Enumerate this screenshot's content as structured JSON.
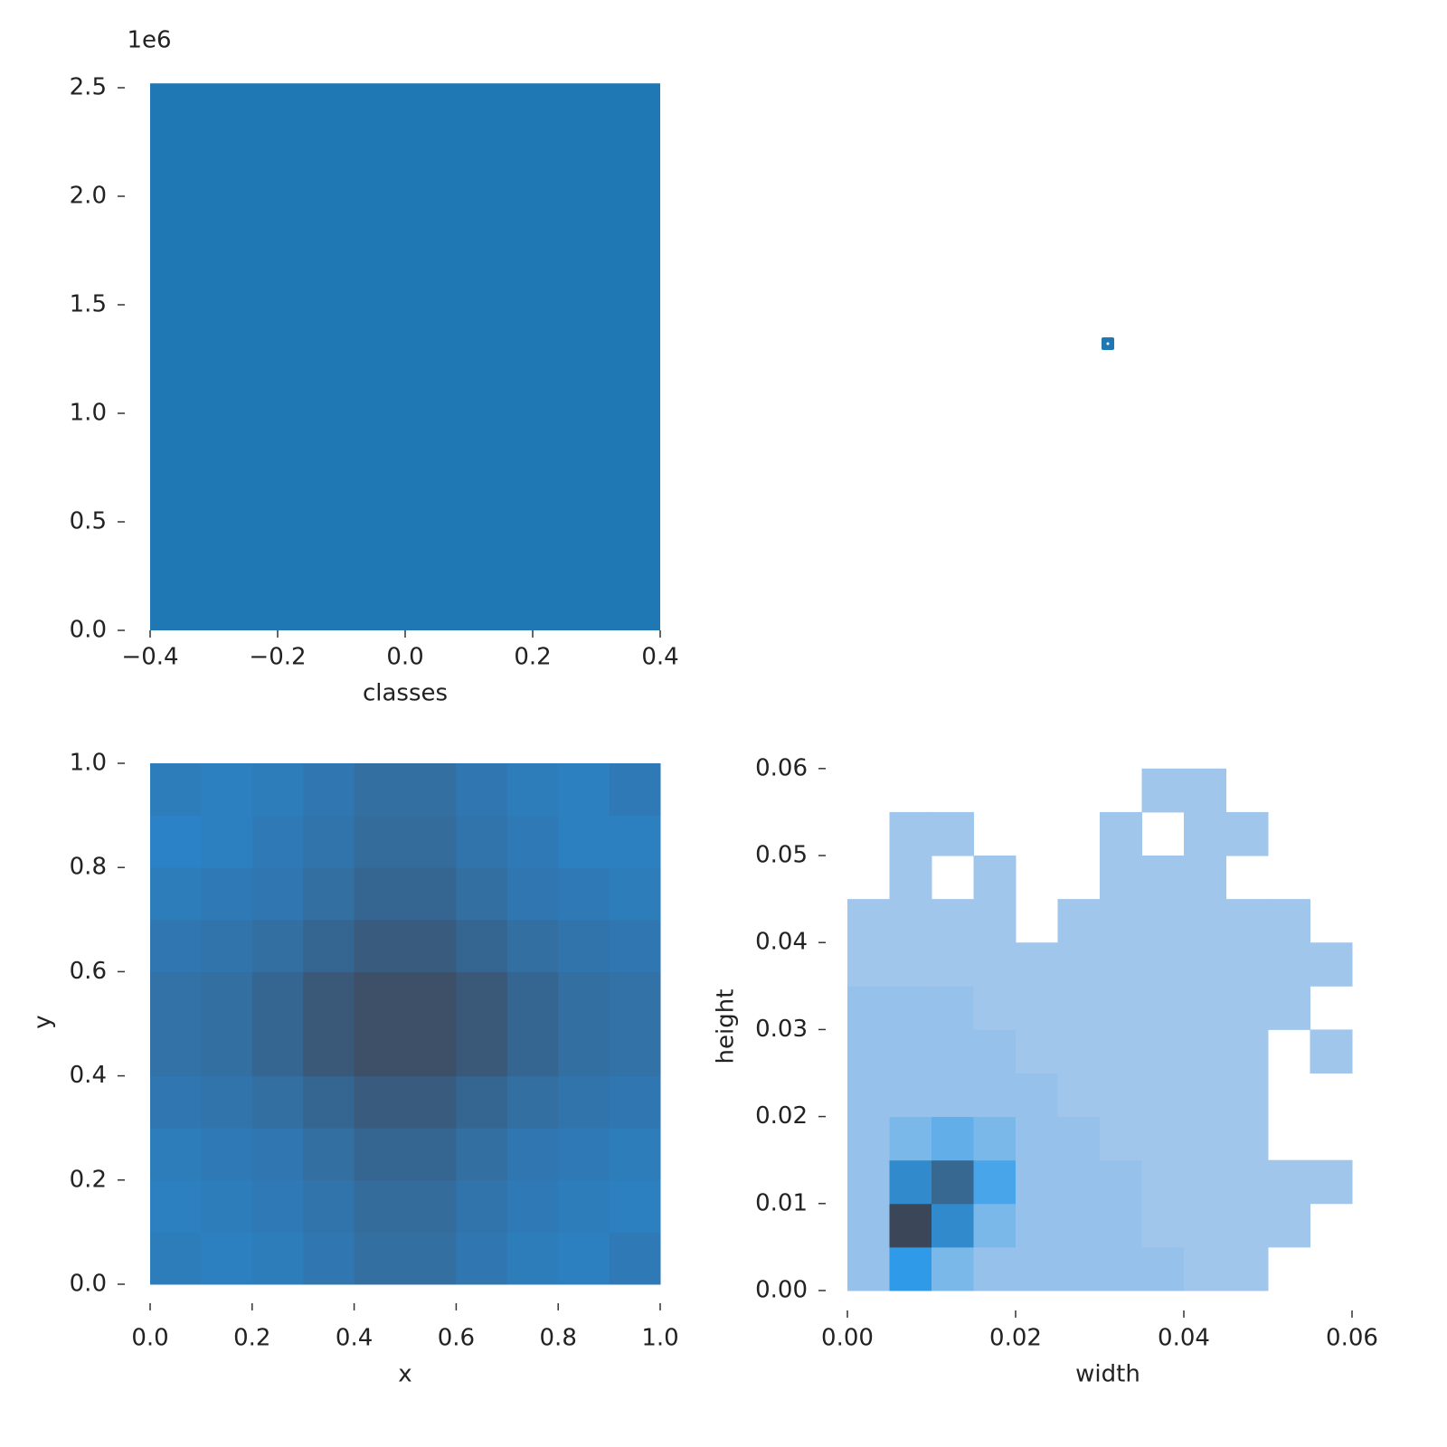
{
  "chart_data": [
    {
      "type": "histogram",
      "xlabel": "classes",
      "offset_label": "1e6",
      "bins": [
        -0.4,
        0.4
      ],
      "values": [
        2.52
      ],
      "color": "#1f77b4",
      "xlim": [
        -0.4,
        0.4
      ],
      "ylim": [
        0,
        2.52
      ],
      "xticks": [
        {
          "value": -0.4,
          "label": "−0.4"
        },
        {
          "value": -0.2,
          "label": "−0.2"
        },
        {
          "value": 0,
          "label": "0.0"
        },
        0.2,
        0.4
      ],
      "yticks": [
        {
          "value": 0,
          "label": "0.0"
        },
        0.5,
        {
          "value": 1,
          "label": "1.0"
        },
        1.5,
        {
          "value": 2,
          "label": "2.0"
        },
        2.5
      ]
    },
    {
      "type": "hist2d",
      "xlabel": "x",
      "ylabel": "y",
      "colors": [
        "#2a88d0",
        "#3d5068"
      ],
      "xbins": [
        0,
        0.1,
        0.2,
        0.3,
        0.4,
        0.5,
        0.6,
        0.7,
        0.8,
        0.9,
        1
      ],
      "ybins": [
        0,
        0.1,
        0.2,
        0.3,
        0.4,
        0.5,
        0.6,
        0.7,
        0.8,
        0.9,
        1
      ],
      "counts": [
        [
          0.2,
          0.15,
          0.2,
          0.3,
          0.45,
          0.45,
          0.3,
          0.2,
          0.15,
          0.25
        ],
        [
          0.15,
          0.2,
          0.25,
          0.35,
          0.5,
          0.5,
          0.35,
          0.25,
          0.2,
          0.15
        ],
        [
          0.2,
          0.25,
          0.3,
          0.45,
          0.6,
          0.6,
          0.45,
          0.3,
          0.25,
          0.2
        ],
        [
          0.3,
          0.35,
          0.45,
          0.6,
          0.8,
          0.8,
          0.6,
          0.45,
          0.35,
          0.3
        ],
        [
          0.4,
          0.45,
          0.6,
          0.85,
          1.0,
          1.0,
          0.85,
          0.6,
          0.45,
          0.4
        ],
        [
          0.4,
          0.45,
          0.6,
          0.85,
          1.0,
          1.0,
          0.85,
          0.6,
          0.45,
          0.4
        ],
        [
          0.3,
          0.35,
          0.45,
          0.6,
          0.8,
          0.8,
          0.6,
          0.45,
          0.35,
          0.3
        ],
        [
          0.2,
          0.25,
          0.3,
          0.45,
          0.6,
          0.6,
          0.45,
          0.3,
          0.25,
          0.2
        ],
        [
          0.1,
          0.15,
          0.25,
          0.35,
          0.5,
          0.5,
          0.35,
          0.25,
          0.15,
          0.15
        ],
        [
          0.2,
          0.15,
          0.2,
          0.3,
          0.45,
          0.45,
          0.3,
          0.2,
          0.15,
          0.25
        ]
      ],
      "xlim": [
        0,
        1
      ],
      "ylim": [
        0,
        1
      ],
      "xticks": [
        {
          "value": 0,
          "label": "0.0"
        },
        0.2,
        0.4,
        0.6,
        0.8,
        {
          "value": 1,
          "label": "1.0"
        }
      ],
      "yticks": [
        {
          "value": 0,
          "label": "0.0"
        },
        0.2,
        0.4,
        0.6,
        0.8,
        {
          "value": 1,
          "label": "1.0"
        }
      ]
    },
    {
      "type": "hist2d",
      "xlabel": "width",
      "ylabel": "height",
      "colors": [
        "#aecbeb",
        "#2f9be8",
        "#3b4658"
      ],
      "xbins": [
        0,
        0.005,
        0.01,
        0.015,
        0.02,
        0.025,
        0.03,
        0.035,
        0.04,
        0.045,
        0.05,
        0.055,
        0.06
      ],
      "ybins": [
        0,
        0.005,
        0.01,
        0.015,
        0.02,
        0.025,
        0.03,
        0.035,
        0.04,
        0.045,
        0.05,
        0.055,
        0.06
      ],
      "counts": [
        [
          0.1,
          0.5,
          0.2,
          0.1,
          0.1,
          0.1,
          0.1,
          0.1,
          0.05,
          0.05,
          0,
          0
        ],
        [
          0.1,
          1.0,
          0.6,
          0.2,
          0.1,
          0.1,
          0.1,
          0.05,
          0.05,
          0.05,
          0.05,
          0
        ],
        [
          0.1,
          0.6,
          0.8,
          0.4,
          0.1,
          0.1,
          0.1,
          0.05,
          0.05,
          0.05,
          0.05,
          0.05
        ],
        [
          0.1,
          0.2,
          0.3,
          0.2,
          0.1,
          0.1,
          0.05,
          0.05,
          0.05,
          0.05,
          0,
          0
        ],
        [
          0.1,
          0.1,
          0.1,
          0.1,
          0.1,
          0.05,
          0.05,
          0.05,
          0.05,
          0.05,
          0,
          0
        ],
        [
          0.1,
          0.1,
          0.1,
          0.1,
          0.05,
          0.05,
          0.05,
          0.05,
          0.05,
          0.05,
          0,
          0.05
        ],
        [
          0.1,
          0.1,
          0.1,
          0.05,
          0.05,
          0.05,
          0.05,
          0.05,
          0.05,
          0.05,
          0.05,
          0
        ],
        [
          0.05,
          0.05,
          0.05,
          0.05,
          0.05,
          0.05,
          0.05,
          0.05,
          0.05,
          0.05,
          0.05,
          0.05
        ],
        [
          0.05,
          0.05,
          0.05,
          0.05,
          0,
          0.05,
          0.05,
          0.05,
          0.05,
          0.05,
          0.05,
          0
        ],
        [
          0,
          0.05,
          0,
          0.05,
          0,
          0,
          0.05,
          0.05,
          0.05,
          0,
          0,
          0
        ],
        [
          0,
          0.05,
          0.05,
          0,
          0,
          0,
          0.05,
          0,
          0.05,
          0.05,
          0,
          0
        ],
        [
          0,
          0,
          0,
          0,
          0,
          0,
          0,
          0.05,
          0.05,
          0,
          0,
          0
        ]
      ],
      "xlim": [
        -0.002,
        0.062
      ],
      "ylim": [
        -0.001,
        0.061
      ],
      "xticks": [
        {
          "value": 0,
          "label": "0.00"
        },
        0.02,
        0.04,
        0.06
      ],
      "yticks": [
        {
          "value": 0,
          "label": "0.00"
        },
        0.01,
        0.02,
        0.03,
        0.04,
        0.05,
        0.06
      ]
    }
  ]
}
